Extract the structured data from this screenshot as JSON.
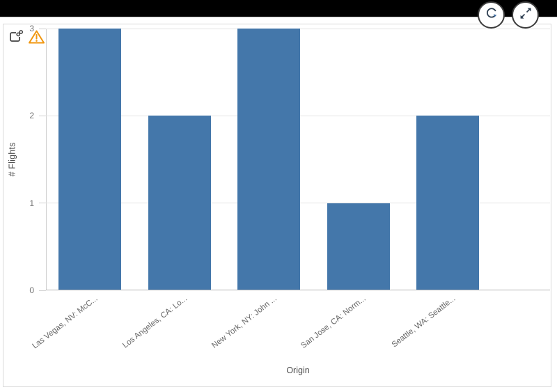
{
  "header": {
    "buttons": [
      {
        "name": "refresh",
        "icon": "circular-arrow"
      },
      {
        "name": "expand",
        "icon": "diagonal-resize-arrows"
      }
    ]
  },
  "chart": {
    "status_icons": [
      {
        "name": "snapshot-link",
        "icon": "linked-object"
      },
      {
        "name": "warning",
        "icon": "alert-triangle"
      }
    ]
  },
  "chart_data": {
    "type": "bar",
    "title": "",
    "categories": [
      "Las Vegas, NV: McC...",
      "Los Angeles, CA: Lo...",
      "New York, NY: John ...",
      "San Jose, CA: Norm...",
      "Seattle, WA: Seattle..."
    ],
    "values": [
      3,
      2,
      3,
      1,
      2
    ],
    "xlabel": "Origin",
    "ylabel": "# Flights",
    "ylim": [
      0,
      3
    ],
    "yticks": [
      0,
      1,
      2,
      3
    ],
    "grid": true,
    "legend": false
  },
  "colors": {
    "bar": "#4477aa",
    "warning": "#f0960e",
    "grid": "#e3e3e3",
    "axis_line": "#d0d0d0",
    "baseline": "#b3b3b3",
    "tick_text": "#757575",
    "category_text": "#666666",
    "axis_title_text": "#4d4d4d",
    "topbar": "#000000",
    "button_border": "#3c3c3c",
    "icon": "#404040"
  }
}
